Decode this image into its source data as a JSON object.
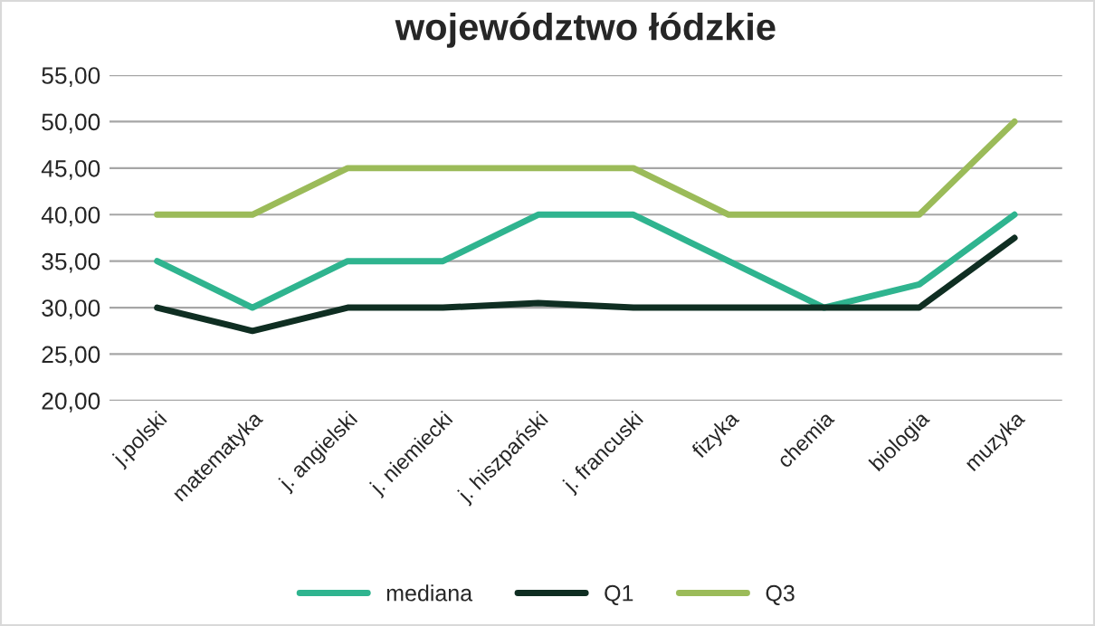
{
  "chart_data": {
    "type": "line",
    "title": "województwo łódzkie",
    "categories": [
      "j.polski",
      "matematyka",
      "j. angielski",
      "j. niemiecki",
      "j. hiszpański",
      "j. francuski",
      "fizyka",
      "chemia",
      "biologia",
      "muzyka"
    ],
    "series": [
      {
        "name": "mediana",
        "color": "#2fb48f",
        "values": [
          35,
          30,
          35,
          35,
          40,
          40,
          35,
          30,
          32.5,
          40
        ]
      },
      {
        "name": "Q1",
        "color": "#0f2e22",
        "values": [
          30,
          27.5,
          30,
          30,
          30.5,
          30,
          30,
          30,
          30,
          37.5
        ]
      },
      {
        "name": "Q3",
        "color": "#9bbb59",
        "values": [
          40,
          40,
          45,
          45,
          45,
          45,
          40,
          40,
          40,
          50
        ]
      }
    ],
    "ylim": [
      20,
      55
    ],
    "yticks": [
      {
        "value": 20,
        "label": "20,00"
      },
      {
        "value": 25,
        "label": "25,00"
      },
      {
        "value": 30,
        "label": "30,00"
      },
      {
        "value": 35,
        "label": "35,00"
      },
      {
        "value": 40,
        "label": "40,00"
      },
      {
        "value": 45,
        "label": "45,00"
      },
      {
        "value": 50,
        "label": "50,00"
      },
      {
        "value": 55,
        "label": "55,00"
      }
    ],
    "grid": "y",
    "legend": "bottom",
    "line_style": "solid",
    "marker": "none"
  }
}
